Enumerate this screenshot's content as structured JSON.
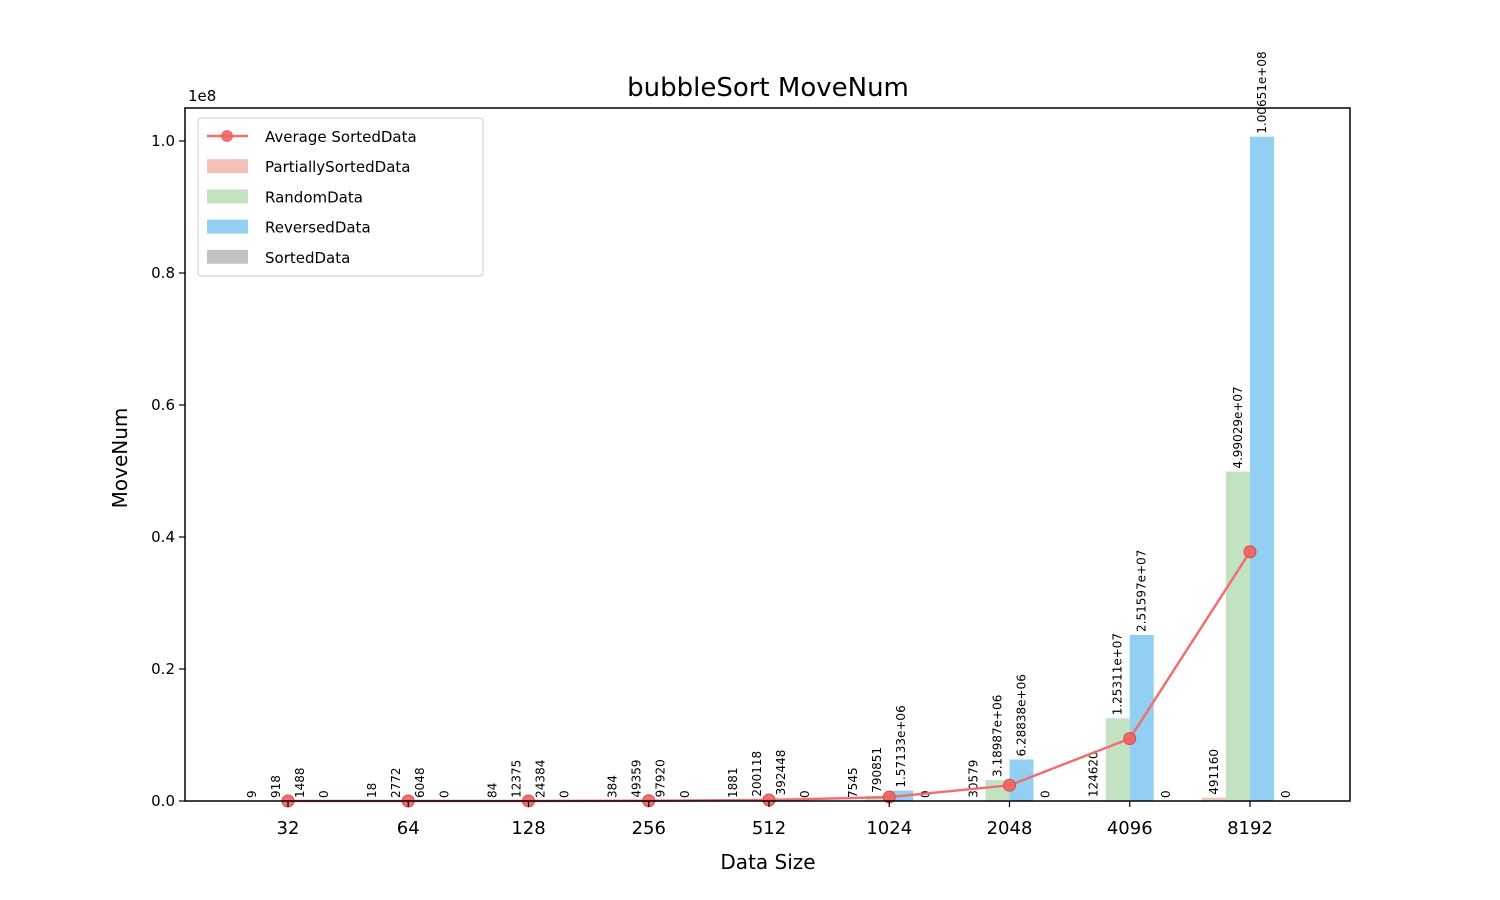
{
  "chart_data": {
    "type": "bar",
    "title": "bubbleSort MoveNum",
    "xlabel": "Data Size",
    "ylabel": "MoveNum",
    "y_offset_text": "1e8",
    "ylim": [
      0,
      105000000
    ],
    "yticks": [
      {
        "value": 0,
        "label": "0.0"
      },
      {
        "value": 20000000,
        "label": "0.2"
      },
      {
        "value": 40000000,
        "label": "0.4"
      },
      {
        "value": 60000000,
        "label": "0.6"
      },
      {
        "value": 80000000,
        "label": "0.8"
      },
      {
        "value": 100000000,
        "label": "1.0"
      }
    ],
    "categories": [
      "32",
      "64",
      "128",
      "256",
      "512",
      "1024",
      "2048",
      "4096",
      "8192"
    ],
    "legend_position": "upper left",
    "series": [
      {
        "name": "PartiallySortedData",
        "color": "#f4c0b8",
        "values": [
          9,
          18,
          84,
          384,
          1881,
          7545,
          30579,
          124620,
          491160
        ],
        "labels": [
          "9",
          "18",
          "84",
          "384",
          "1881",
          "7545",
          "30579",
          "124620",
          "491160"
        ]
      },
      {
        "name": "RandomData",
        "color": "#c2e2c2",
        "values": [
          918,
          2772,
          12375,
          49359,
          200118,
          790851,
          3189870,
          12531100,
          49902900
        ],
        "labels": [
          "918",
          "2772",
          "12375",
          "49359",
          "200118",
          "790851",
          "3.18987e+06",
          "1.25311e+07",
          "4.99029e+07"
        ]
      },
      {
        "name": "ReversedData",
        "color": "#93cff2",
        "values": [
          1488,
          6048,
          24384,
          97920,
          392448,
          1571330,
          6288380,
          25159700,
          100651000
        ],
        "labels": [
          "1488",
          "6048",
          "24384",
          "97920",
          "392448",
          "1.57133e+06",
          "6.28838e+06",
          "2.51597e+07",
          "1.00651e+08"
        ]
      },
      {
        "name": "SortedData",
        "color": "#c2c2c2",
        "values": [
          0,
          0,
          0,
          0,
          0,
          0,
          0,
          0,
          0
        ],
        "labels": [
          "0",
          "0",
          "0",
          "0",
          "0",
          "0",
          "0",
          "0",
          "0"
        ]
      }
    ],
    "line": {
      "name": "Average SortedData",
      "color": "#f07070",
      "values": [
        604,
        2210,
        9211,
        36916,
        148612,
        592432,
        2377207,
        9453855,
        37761265
      ]
    }
  }
}
